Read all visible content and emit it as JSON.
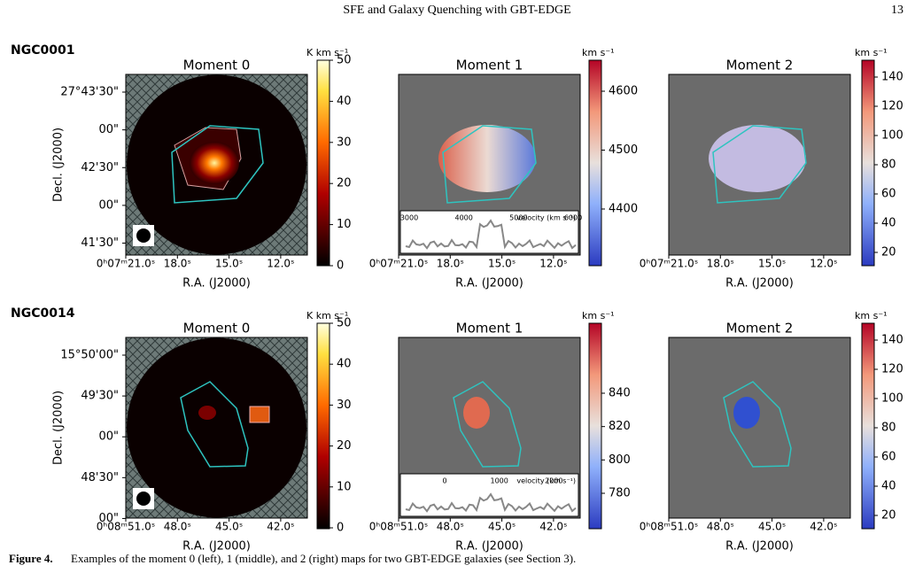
{
  "header": {
    "title": "SFE and Galaxy Quenching with GBT-EDGE",
    "page": "13"
  },
  "galaxies": [
    {
      "name": "NGC0001",
      "dec_label": "Decl. (J2000)",
      "ra_label": "R.A. (J2000)",
      "dec_ticks": [
        "27°43'30\"",
        "00\"",
        "42'30\"",
        "00\"",
        "41'30\""
      ],
      "ra_ticks": [
        "0ʰ07ᵐ21.0ˢ",
        "18.0ˢ",
        "15.0ˢ",
        "12.0ˢ"
      ],
      "panels": [
        {
          "title": "Moment 0",
          "unit": "K km s⁻¹",
          "cbar_ticks": [
            "0",
            "10",
            "20",
            "30",
            "40",
            "50"
          ]
        },
        {
          "title": "Moment 1",
          "unit": "km s⁻¹",
          "cbar_ticks": [
            "4400",
            "4500",
            "4600"
          ],
          "inset": {
            "label": "velocity (km s⁻¹)",
            "ticks": [
              "3000",
              "4000",
              "5000",
              "6000"
            ]
          }
        },
        {
          "title": "Moment 2",
          "unit": "km s⁻¹",
          "cbar_ticks": [
            "20",
            "40",
            "60",
            "80",
            "100",
            "120",
            "140"
          ]
        }
      ]
    },
    {
      "name": "NGC0014",
      "dec_label": "Decl. (J2000)",
      "ra_label": "R.A. (J2000)",
      "dec_ticks": [
        "15°50'00\"",
        "49'30\"",
        "00\"",
        "48'30\"",
        "00\""
      ],
      "ra_ticks": [
        "0ʰ08ᵐ51.0ˢ",
        "48.0ˢ",
        "45.0ˢ",
        "42.0ˢ"
      ],
      "panels": [
        {
          "title": "Moment 0",
          "unit": "K km s⁻¹",
          "cbar_ticks": [
            "0",
            "10",
            "20",
            "30",
            "40",
            "50"
          ]
        },
        {
          "title": "Moment 1",
          "unit": "km s⁻¹",
          "cbar_ticks": [
            "780",
            "800",
            "820",
            "840"
          ],
          "inset": {
            "label": "velocity (km s⁻¹)",
            "ticks": [
              "0",
              "1000",
              "2000"
            ]
          }
        },
        {
          "title": "Moment 2",
          "unit": "km s⁻¹",
          "cbar_ticks": [
            "20",
            "40",
            "60",
            "80",
            "100",
            "120",
            "140"
          ]
        }
      ]
    }
  ],
  "caption": {
    "label": "Figure 4.",
    "text": "Examples of the moment 0 (left), 1 (middle), and 2 (right) maps for two GBT-EDGE galaxies (see Section 3)."
  }
}
